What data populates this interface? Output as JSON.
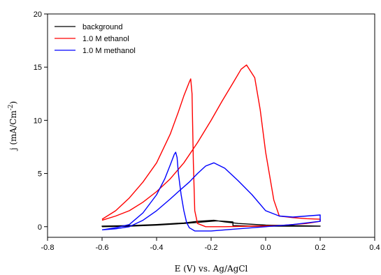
{
  "chart_data": {
    "type": "line",
    "title": "",
    "xlabel": "E (V) vs. Ag/AgCl",
    "ylabel": "j (mA/Cm",
    "ylabel_exponent": "-2",
    "ylabel_suffix": ")",
    "xlim": [
      -0.8,
      0.4
    ],
    "ylim": [
      -1,
      20
    ],
    "xticks": [
      -0.8,
      -0.6,
      -0.4,
      -0.2,
      0.0,
      0.2,
      0.4
    ],
    "xtick_labels": [
      "-0.8",
      "-0.6",
      "-0.4",
      "-0.2",
      "0.0",
      "0.2",
      "0.4"
    ],
    "yticks": [
      0,
      5,
      10,
      15,
      20
    ],
    "ytick_labels": [
      "0",
      "5",
      "10",
      "15",
      "20"
    ],
    "grid": false,
    "legend_position": "top-left",
    "series": [
      {
        "name": "background",
        "color": "#000000",
        "x": [
          -0.6,
          -0.5,
          -0.4,
          -0.3,
          -0.25,
          -0.2,
          -0.18,
          -0.15,
          -0.12,
          -0.12,
          -0.05,
          0.0,
          0.1,
          0.2,
          0.2,
          0.1,
          0.0,
          -0.1,
          -0.15,
          -0.19,
          -0.25,
          -0.3,
          -0.4,
          -0.5,
          -0.6,
          -0.6
        ],
        "y": [
          0.0,
          0.05,
          0.15,
          0.3,
          0.4,
          0.5,
          0.55,
          0.5,
          0.45,
          0.1,
          0.05,
          0.05,
          0.05,
          0.05,
          0.05,
          0.1,
          0.15,
          0.3,
          0.45,
          0.6,
          0.5,
          0.35,
          0.2,
          0.1,
          0.05,
          0.0
        ]
      },
      {
        "name": "1.0 M ethanol",
        "color": "#ff0000",
        "x": [
          -0.6,
          -0.55,
          -0.5,
          -0.45,
          -0.4,
          -0.35,
          -0.32,
          -0.3,
          -0.28,
          -0.275,
          -0.27,
          -0.265,
          -0.26,
          -0.25,
          -0.22,
          -0.15,
          -0.05,
          0.05,
          0.1,
          0.15,
          0.2,
          0.2,
          0.15,
          0.1,
          0.05,
          0.03,
          0.0,
          -0.02,
          -0.04,
          -0.07,
          -0.09,
          -0.12,
          -0.16,
          -0.2,
          -0.25,
          -0.3,
          -0.35,
          -0.4,
          -0.45,
          -0.5,
          -0.55,
          -0.6
        ],
        "y": [
          0.7,
          1.5,
          2.7,
          4.2,
          6.0,
          8.7,
          10.8,
          12.3,
          13.6,
          13.9,
          12.5,
          6.0,
          1.5,
          0.3,
          0.0,
          0.0,
          0.05,
          0.1,
          0.2,
          0.3,
          0.5,
          0.7,
          0.75,
          0.85,
          1.0,
          2.5,
          7.0,
          11.0,
          14.0,
          15.2,
          14.8,
          13.5,
          11.8,
          10.0,
          7.9,
          6.0,
          4.5,
          3.3,
          2.3,
          1.5,
          1.0,
          0.6
        ]
      },
      {
        "name": "1.0 M methanol",
        "color": "#0000ff",
        "x": [
          -0.6,
          -0.55,
          -0.5,
          -0.45,
          -0.4,
          -0.37,
          -0.35,
          -0.335,
          -0.33,
          -0.325,
          -0.32,
          -0.31,
          -0.3,
          -0.29,
          -0.28,
          -0.26,
          -0.2,
          -0.1,
          0.0,
          0.1,
          0.2,
          0.2,
          0.15,
          0.1,
          0.05,
          0.0,
          -0.05,
          -0.1,
          -0.15,
          -0.19,
          -0.22,
          -0.25,
          -0.28,
          -0.32,
          -0.35,
          -0.4,
          -0.45,
          -0.5,
          -0.55,
          -0.6
        ],
        "y": [
          -0.3,
          -0.1,
          0.2,
          1.3,
          3.0,
          4.5,
          5.8,
          6.8,
          7.0,
          6.5,
          5.0,
          3.0,
          1.5,
          0.4,
          -0.1,
          -0.4,
          -0.4,
          -0.2,
          0.0,
          0.2,
          0.5,
          1.1,
          1.0,
          0.9,
          1.0,
          1.5,
          3.0,
          4.3,
          5.5,
          6.0,
          5.7,
          5.0,
          4.2,
          3.3,
          2.6,
          1.5,
          0.6,
          0.0,
          -0.2,
          -0.3
        ]
      }
    ]
  }
}
